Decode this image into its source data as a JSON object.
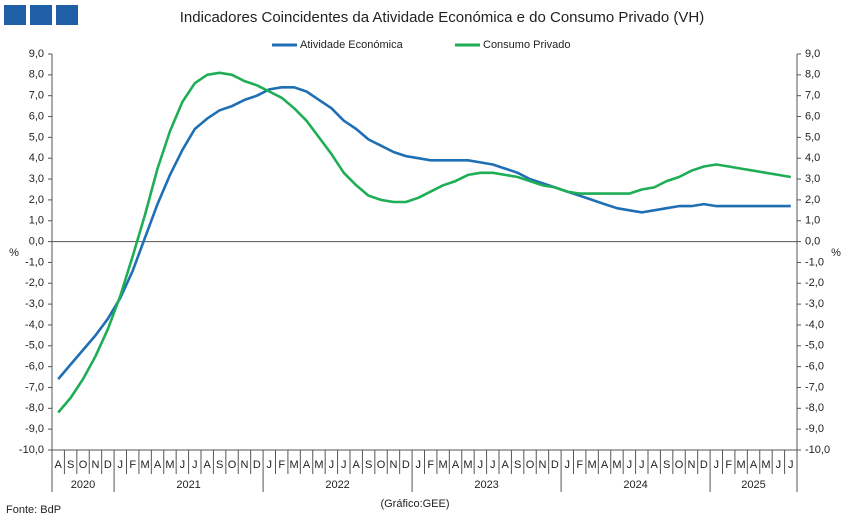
{
  "chart_data": {
    "type": "line",
    "title": "Indicadores Coincidentes da Atividade Económica e do Consumo Privado (VH)",
    "y_label": "%",
    "y2_label": "%",
    "source": "Fonte: BdP",
    "credit": "(Gráfico:GEE)",
    "categories": [
      "A",
      "S",
      "O",
      "N",
      "D",
      "J",
      "F",
      "M",
      "A",
      "M",
      "J",
      "J",
      "A",
      "S",
      "O",
      "N",
      "D",
      "J",
      "F",
      "M",
      "A",
      "M",
      "J",
      "J",
      "A",
      "S",
      "O",
      "N",
      "D",
      "J",
      "F",
      "M",
      "A",
      "M",
      "J",
      "J",
      "A",
      "S",
      "O",
      "N",
      "D",
      "J",
      "F",
      "M",
      "A",
      "M",
      "J",
      "J",
      "A",
      "S",
      "O",
      "N",
      "D",
      "J",
      "F",
      "M",
      "A",
      "M",
      "J",
      "J"
    ],
    "years": [
      "2020",
      "2021",
      "2022",
      "2023",
      "2024",
      "2025"
    ],
    "series": [
      {
        "name": "Atividade Económica",
        "color": "#1f6fb4",
        "values": [
          -6.6,
          -5.9,
          -5.2,
          -4.5,
          -3.7,
          -2.7,
          -1.4,
          0.2,
          1.8,
          3.2,
          4.4,
          5.4,
          5.9,
          6.3,
          6.5,
          6.8,
          7.0,
          7.3,
          7.4,
          7.4,
          7.2,
          6.8,
          6.4,
          5.8,
          5.4,
          4.9,
          4.6,
          4.3,
          4.1,
          4.0,
          3.9,
          3.9,
          3.9,
          3.9,
          3.8,
          3.7,
          3.5,
          3.3,
          3.0,
          2.8,
          2.6,
          2.4,
          2.2,
          2.0,
          1.8,
          1.6,
          1.5,
          1.4,
          1.5,
          1.6,
          1.7,
          1.7,
          1.8,
          1.7,
          1.7,
          1.7,
          1.7,
          1.7,
          1.7,
          1.7
        ]
      },
      {
        "name": "Consumo Privado",
        "color": "#1fae56",
        "values": [
          -8.2,
          -7.5,
          -6.6,
          -5.5,
          -4.2,
          -2.6,
          -0.7,
          1.3,
          3.5,
          5.3,
          6.7,
          7.6,
          8.0,
          8.1,
          8.0,
          7.7,
          7.5,
          7.2,
          6.9,
          6.4,
          5.8,
          5.0,
          4.2,
          3.3,
          2.7,
          2.2,
          2.0,
          1.9,
          1.9,
          2.1,
          2.4,
          2.7,
          2.9,
          3.2,
          3.3,
          3.3,
          3.2,
          3.1,
          2.9,
          2.7,
          2.6,
          2.4,
          2.3,
          2.3,
          2.3,
          2.3,
          2.3,
          2.5,
          2.6,
          2.9,
          3.1,
          3.4,
          3.6,
          3.7,
          3.6,
          3.5,
          3.4,
          3.3,
          3.2,
          3.1
        ]
      }
    ],
    "ylim": [
      -10,
      9
    ],
    "yticks": [
      {
        "value": 9,
        "label": "9,0"
      },
      {
        "value": 8,
        "label": "8,0"
      },
      {
        "value": 7,
        "label": "7,0"
      },
      {
        "value": 6,
        "label": "6,0"
      },
      {
        "value": 5,
        "label": "5,0"
      },
      {
        "value": 4,
        "label": "4,0"
      },
      {
        "value": 3,
        "label": "3,0"
      },
      {
        "value": 2,
        "label": "2,0"
      },
      {
        "value": 1,
        "label": "1,0"
      },
      {
        "value": 0,
        "label": "0,0"
      },
      {
        "value": -1,
        "label": "-1,0"
      },
      {
        "value": -2,
        "label": "-2,0"
      },
      {
        "value": -3,
        "label": "-3,0"
      },
      {
        "value": -4,
        "label": "-4,0"
      },
      {
        "value": -5,
        "label": "-5,0"
      },
      {
        "value": -6,
        "label": "-6,0"
      },
      {
        "value": -7,
        "label": "-7,0"
      },
      {
        "value": -8,
        "label": "-8,0"
      },
      {
        "value": -9,
        "label": "-9,0"
      },
      {
        "value": -10,
        "label": "-10,0"
      }
    ],
    "y2lim": [
      -10,
      9
    ],
    "y2ticks": [
      {
        "value": 9,
        "label": "9,0"
      },
      {
        "value": 8,
        "label": "8,0"
      },
      {
        "value": 7,
        "label": "7,0"
      },
      {
        "value": 6,
        "label": "6,0"
      },
      {
        "value": 5,
        "label": "5,0"
      },
      {
        "value": 4,
        "label": "4,0"
      },
      {
        "value": 3,
        "label": "3,0"
      },
      {
        "value": 2,
        "label": "2,0"
      },
      {
        "value": 1,
        "label": "1,0"
      },
      {
        "value": 0,
        "label": "0,0"
      },
      {
        "value": -1,
        "label": "-1,0"
      },
      {
        "value": -2,
        "label": "-2,0"
      },
      {
        "value": -3,
        "label": "-3,0"
      },
      {
        "value": -4,
        "label": "-4,0"
      },
      {
        "value": -5,
        "label": "-5,0"
      },
      {
        "value": -6,
        "label": "-6,0"
      },
      {
        "value": -7,
        "label": "-7,0"
      },
      {
        "value": -8,
        "label": "-8,0"
      },
      {
        "value": -9,
        "label": "-9,0"
      },
      {
        "value": -10,
        "label": "-10,0"
      }
    ],
    "grid": false,
    "legend": "top"
  }
}
